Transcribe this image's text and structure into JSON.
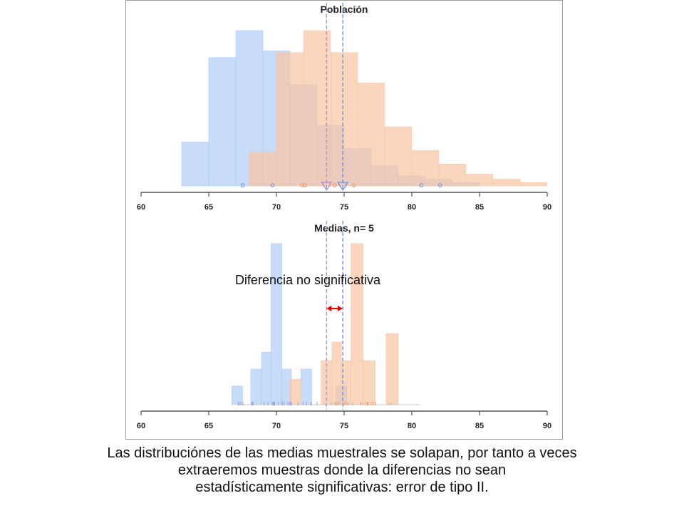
{
  "chart_data": [
    {
      "type": "histogram",
      "title": "Población",
      "xlim": [
        60,
        90
      ],
      "xticks": [
        60,
        65,
        70,
        75,
        80,
        85,
        90
      ],
      "grid": false,
      "series": [
        {
          "color": "#aac7f5",
          "bins": [
            {
              "x0": 63,
              "x1": 65,
              "h": 0.26
            },
            {
              "x0": 65,
              "x1": 67,
              "h": 0.76
            },
            {
              "x0": 67,
              "x1": 69,
              "h": 0.92
            },
            {
              "x0": 69,
              "x1": 71,
              "h": 0.8
            },
            {
              "x0": 71,
              "x1": 73,
              "h": 0.6
            },
            {
              "x0": 73,
              "x1": 75,
              "h": 0.36
            },
            {
              "x0": 75,
              "x1": 77,
              "h": 0.22
            },
            {
              "x0": 77,
              "x1": 79,
              "h": 0.12
            },
            {
              "x0": 79,
              "x1": 81,
              "h": 0.06
            },
            {
              "x0": 81,
              "x1": 83,
              "h": 0.04
            },
            {
              "x0": 83,
              "x1": 85,
              "h": 0.02
            }
          ],
          "mean": 74.9,
          "sample_points": [
            67.5,
            69.7,
            80.7,
            82.1
          ]
        },
        {
          "color": "#f8c4a2",
          "bins": [
            {
              "x0": 68,
              "x1": 70,
              "h": 0.2
            },
            {
              "x0": 70,
              "x1": 72,
              "h": 0.79
            },
            {
              "x0": 72,
              "x1": 74,
              "h": 0.92
            },
            {
              "x0": 74,
              "x1": 76,
              "h": 0.79
            },
            {
              "x0": 76,
              "x1": 78,
              "h": 0.61
            },
            {
              "x0": 78,
              "x1": 80,
              "h": 0.35
            },
            {
              "x0": 80,
              "x1": 82,
              "h": 0.21
            },
            {
              "x0": 82,
              "x1": 84,
              "h": 0.13
            },
            {
              "x0": 84,
              "x1": 86,
              "h": 0.07
            },
            {
              "x0": 86,
              "x1": 88,
              "h": 0.04
            },
            {
              "x0": 88,
              "x1": 90,
              "h": 0.02
            }
          ],
          "mean": 73.7,
          "sample_points": [
            71.9,
            72.1,
            74.3,
            75.7
          ]
        }
      ]
    },
    {
      "type": "histogram",
      "title": "Medias, n= 5",
      "xlim": [
        60,
        90
      ],
      "xticks": [
        60,
        65,
        70,
        75,
        80,
        85,
        90
      ],
      "grid": false,
      "series": [
        {
          "color": "#aac7f5",
          "bins": [
            {
              "x0": 66.7,
              "x1": 67.5,
              "h": 0.11
            },
            {
              "x0": 68.1,
              "x1": 68.9,
              "h": 0.21
            },
            {
              "x0": 68.9,
              "x1": 69.6,
              "h": 0.31
            },
            {
              "x0": 69.6,
              "x1": 70.4,
              "h": 0.95
            },
            {
              "x0": 70.4,
              "x1": 71.1,
              "h": 0.21
            },
            {
              "x0": 71.8,
              "x1": 72.6,
              "h": 0.21
            },
            {
              "x0": 74.4,
              "x1": 75.2,
              "h": 0.11
            }
          ],
          "mean": 74.9,
          "rug_range": [
            67.2,
            73.0
          ]
        },
        {
          "color": "#f8c4a2",
          "bins": [
            {
              "x0": 71.0,
              "x1": 71.8,
              "h": 0.15
            },
            {
              "x0": 73.3,
              "x1": 74.1,
              "h": 0.26
            },
            {
              "x0": 74.1,
              "x1": 74.8,
              "h": 0.37
            },
            {
              "x0": 74.8,
              "x1": 75.5,
              "h": 0.26
            },
            {
              "x0": 75.5,
              "x1": 76.4,
              "h": 0.95
            },
            {
              "x0": 76.4,
              "x1": 77.3,
              "h": 0.26
            },
            {
              "x0": 78.1,
              "x1": 79.0,
              "h": 0.42
            }
          ],
          "mean": 73.7,
          "rug_range": [
            73.5,
            78.5
          ]
        }
      ],
      "annotation": "Diferencia no significativa"
    }
  ],
  "caption": {
    "line1": "Las distribuciónes de las medias muestrales se solapan, por tanto a veces",
    "line2": "extraeremos muestras donde la diferencias no sean",
    "line3": "estadísticamente significativas: error de tipo II."
  }
}
